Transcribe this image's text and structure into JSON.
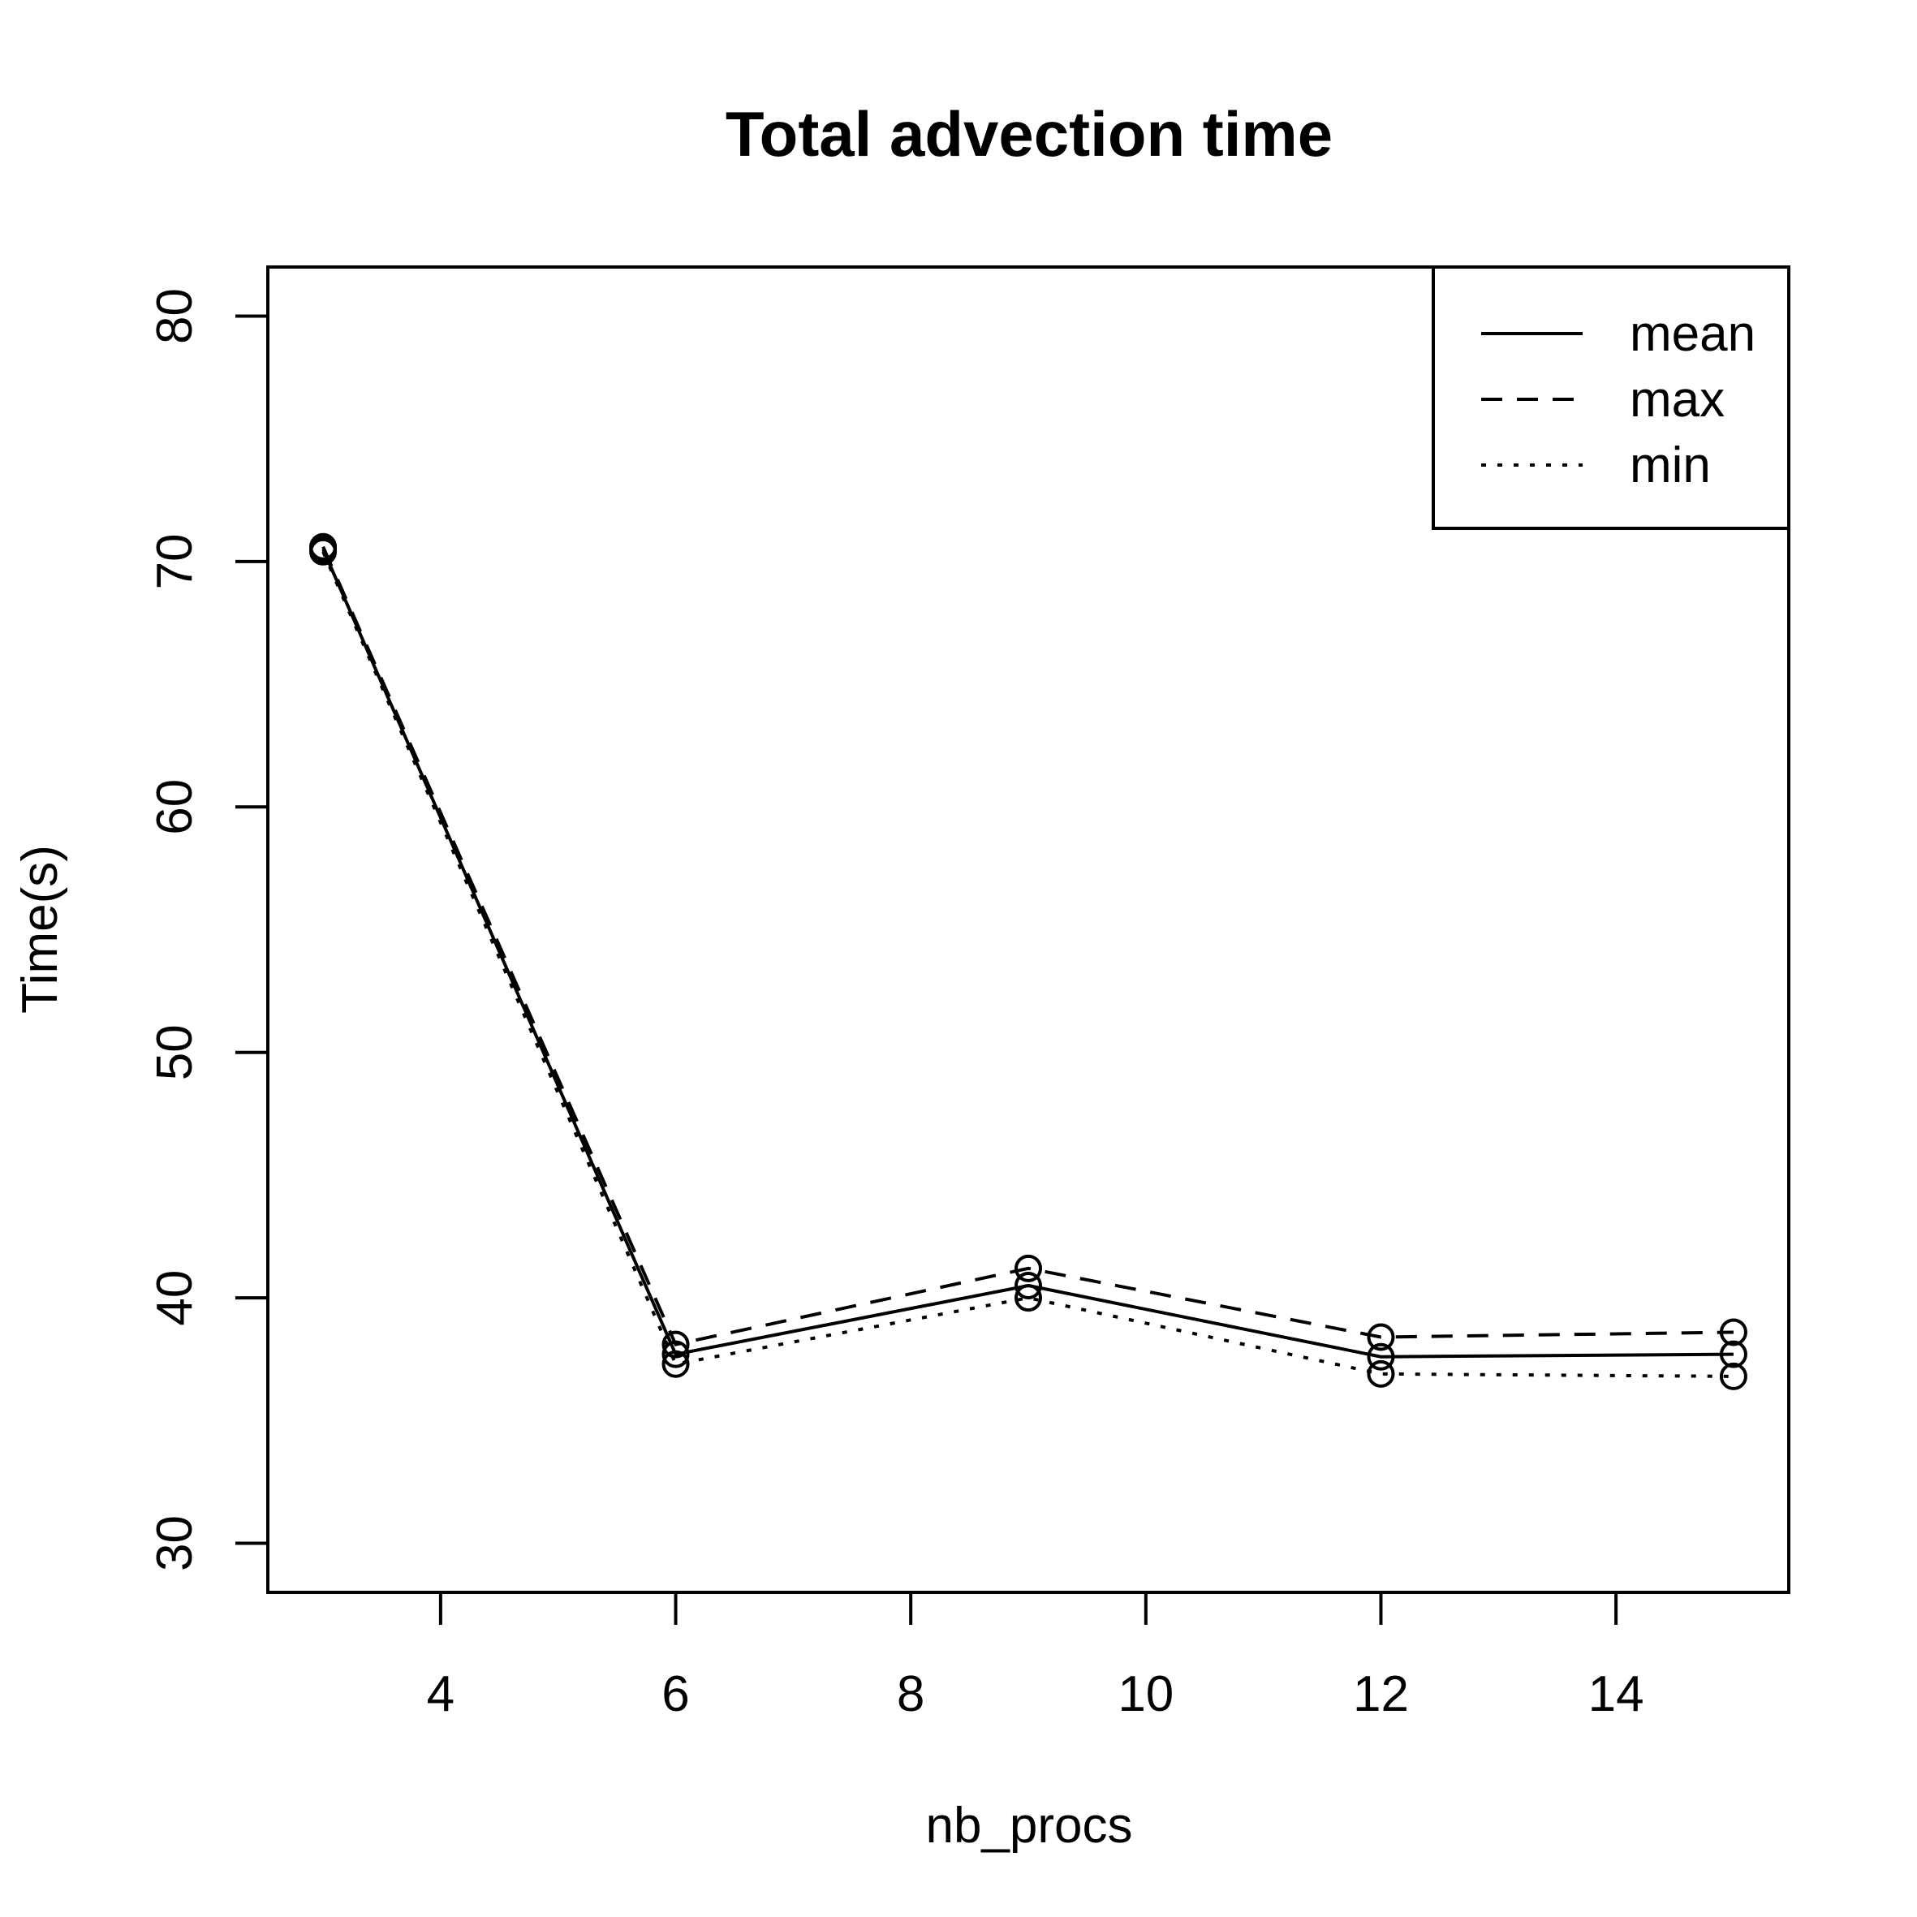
{
  "chart_data": {
    "type": "line",
    "title": "Total advection time",
    "xlabel": "nb_procs",
    "ylabel": "Time(s)",
    "xlim": [
      2.53,
      15.47
    ],
    "ylim": [
      28,
      82
    ],
    "xticks": [
      4,
      6,
      8,
      10,
      12,
      14
    ],
    "yticks": [
      30,
      40,
      50,
      60,
      70,
      80
    ],
    "grid": false,
    "legend_position": "top-right",
    "x": [
      3,
      6,
      9,
      12,
      15
    ],
    "series": [
      {
        "name": "mean",
        "line_style": "solid",
        "values": [
          70.5,
          37.7,
          40.5,
          37.6,
          37.7
        ]
      },
      {
        "name": "max",
        "line_style": "dashed",
        "values": [
          70.6,
          38.1,
          41.2,
          38.4,
          38.6
        ]
      },
      {
        "name": "min",
        "line_style": "dotted",
        "values": [
          70.4,
          37.3,
          40.0,
          36.9,
          36.8
        ]
      }
    ],
    "colors": {
      "line": "#000000",
      "background": "#ffffff"
    }
  }
}
